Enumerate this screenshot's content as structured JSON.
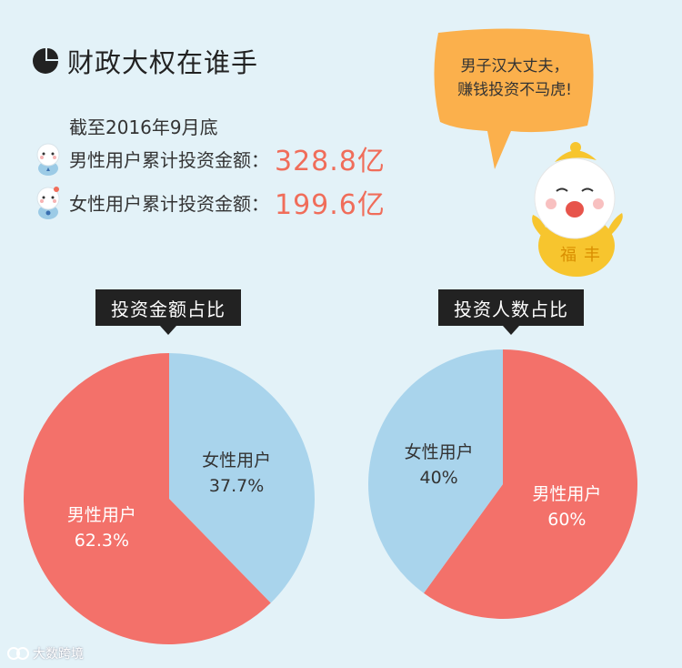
{
  "header": {
    "title": "财政大权在谁手"
  },
  "asof": "截至2016年9月底",
  "stats": {
    "male_label": "男性用户累计投资金额：",
    "male_value": "328.8亿",
    "female_label": "女性用户累计投资金额：",
    "female_value": "199.6亿"
  },
  "bubble": {
    "line1": "男子汉大丈夫，",
    "line2": "赚钱投资不马虎!"
  },
  "mascot": {
    "coat_text_1": "福",
    "coat_text_2": "丰"
  },
  "chart_data": [
    {
      "type": "pie",
      "title": "投资金额占比",
      "slices": [
        {
          "label": "女性用户",
          "value": 37.7,
          "display": "37.7%",
          "color": "#a9d4ec"
        },
        {
          "label": "男性用户",
          "value": 62.3,
          "display": "62.3%",
          "color": "#f3716a"
        }
      ]
    },
    {
      "type": "pie",
      "title": "投资人数占比",
      "slices": [
        {
          "label": "男性用户",
          "value": 60,
          "display": "60%",
          "color": "#f3716a"
        },
        {
          "label": "女性用户",
          "value": 40,
          "display": "40%",
          "color": "#a9d4ec"
        }
      ]
    }
  ],
  "watermark": "大数跨境"
}
